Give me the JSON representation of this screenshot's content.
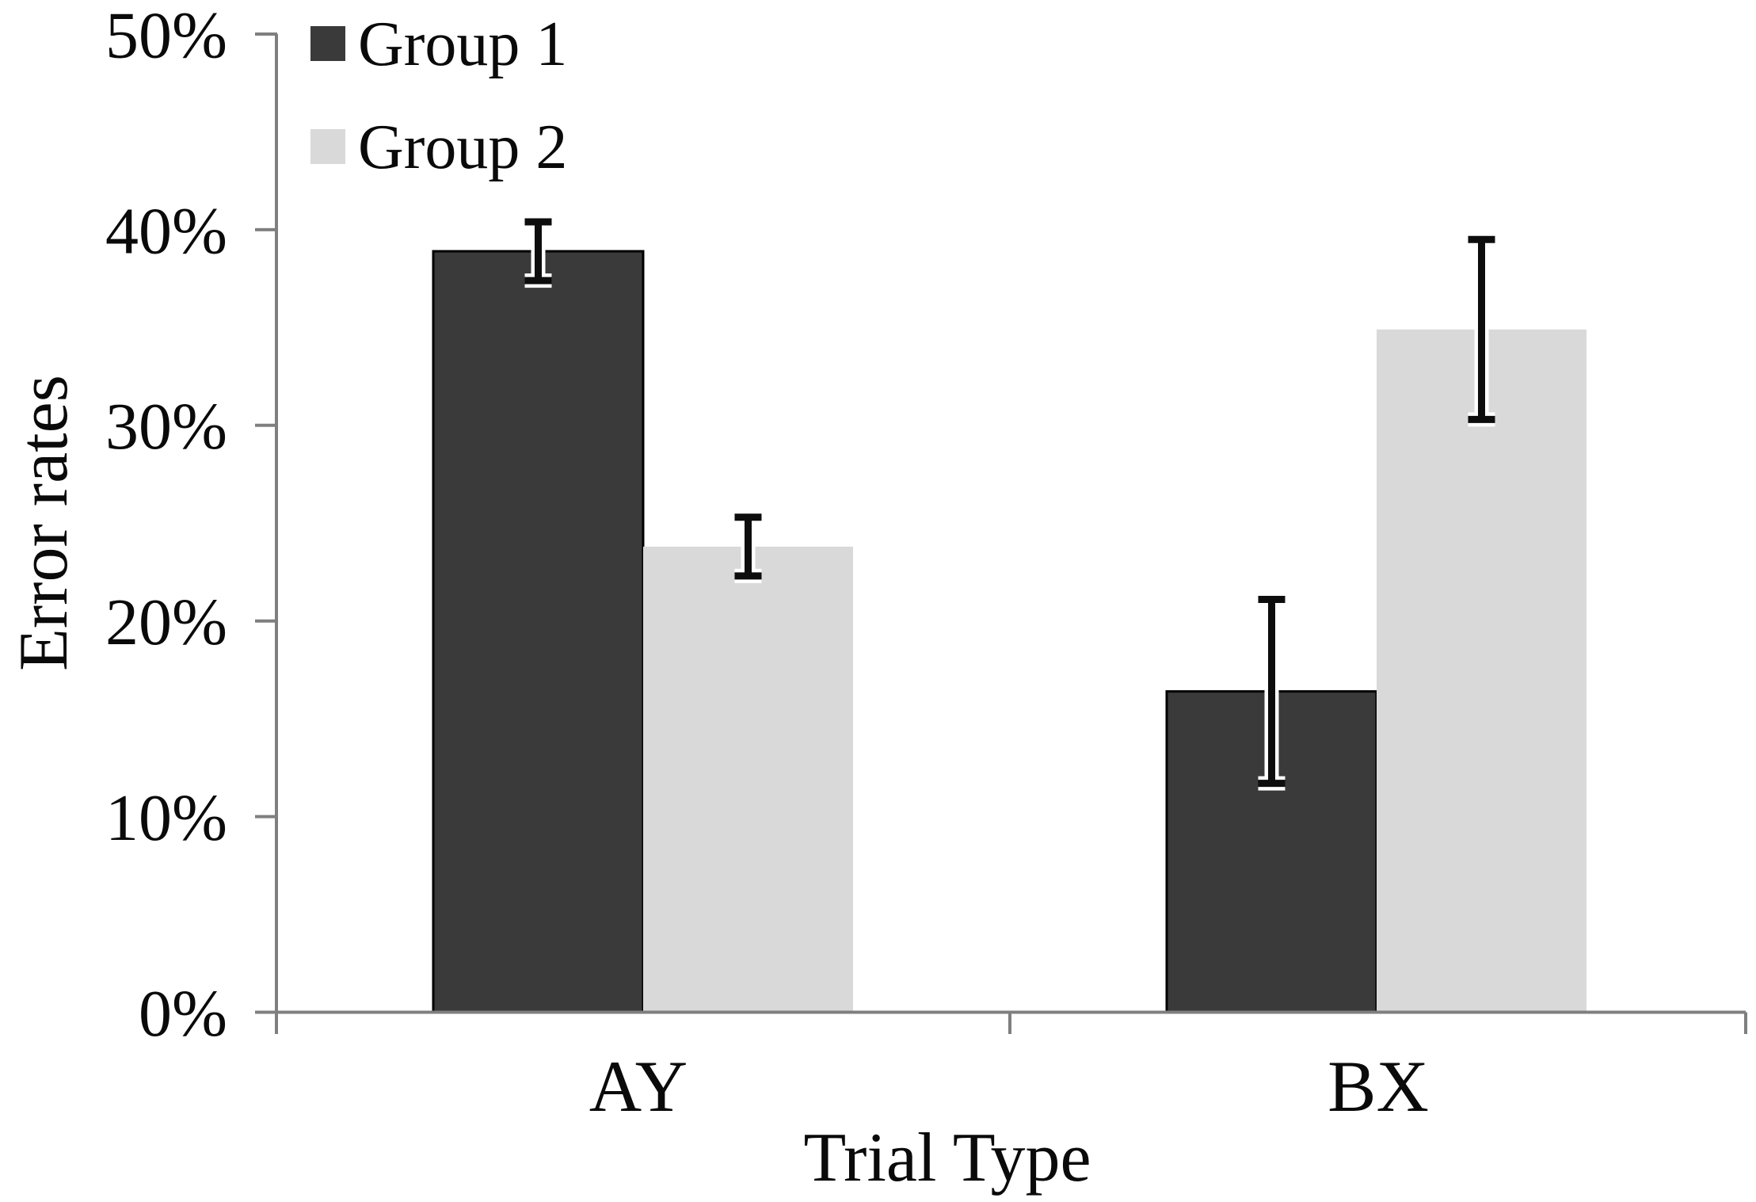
{
  "chart_data": {
    "type": "bar",
    "title": "",
    "categories": [
      "AY",
      "BX"
    ],
    "series": [
      {
        "name": "Group 1",
        "color": "#3a3a3a",
        "values": [
          38.9,
          16.4
        ],
        "errors": [
          1.5,
          4.7
        ]
      },
      {
        "name": "Group 2",
        "color": "#d9d9d9",
        "values": [
          23.8,
          34.9
        ],
        "errors": [
          1.5,
          4.6
        ]
      }
    ],
    "xlabel": "Trial Type",
    "ylabel": "Error rates",
    "ylim": [
      0,
      50
    ],
    "ytick_interval": 10,
    "yticks": [
      "0%",
      "10%",
      "20%",
      "30%",
      "40%",
      "50%"
    ],
    "grid": false,
    "legend_position": "top-left",
    "error_bars": "plus-minus, capped"
  }
}
